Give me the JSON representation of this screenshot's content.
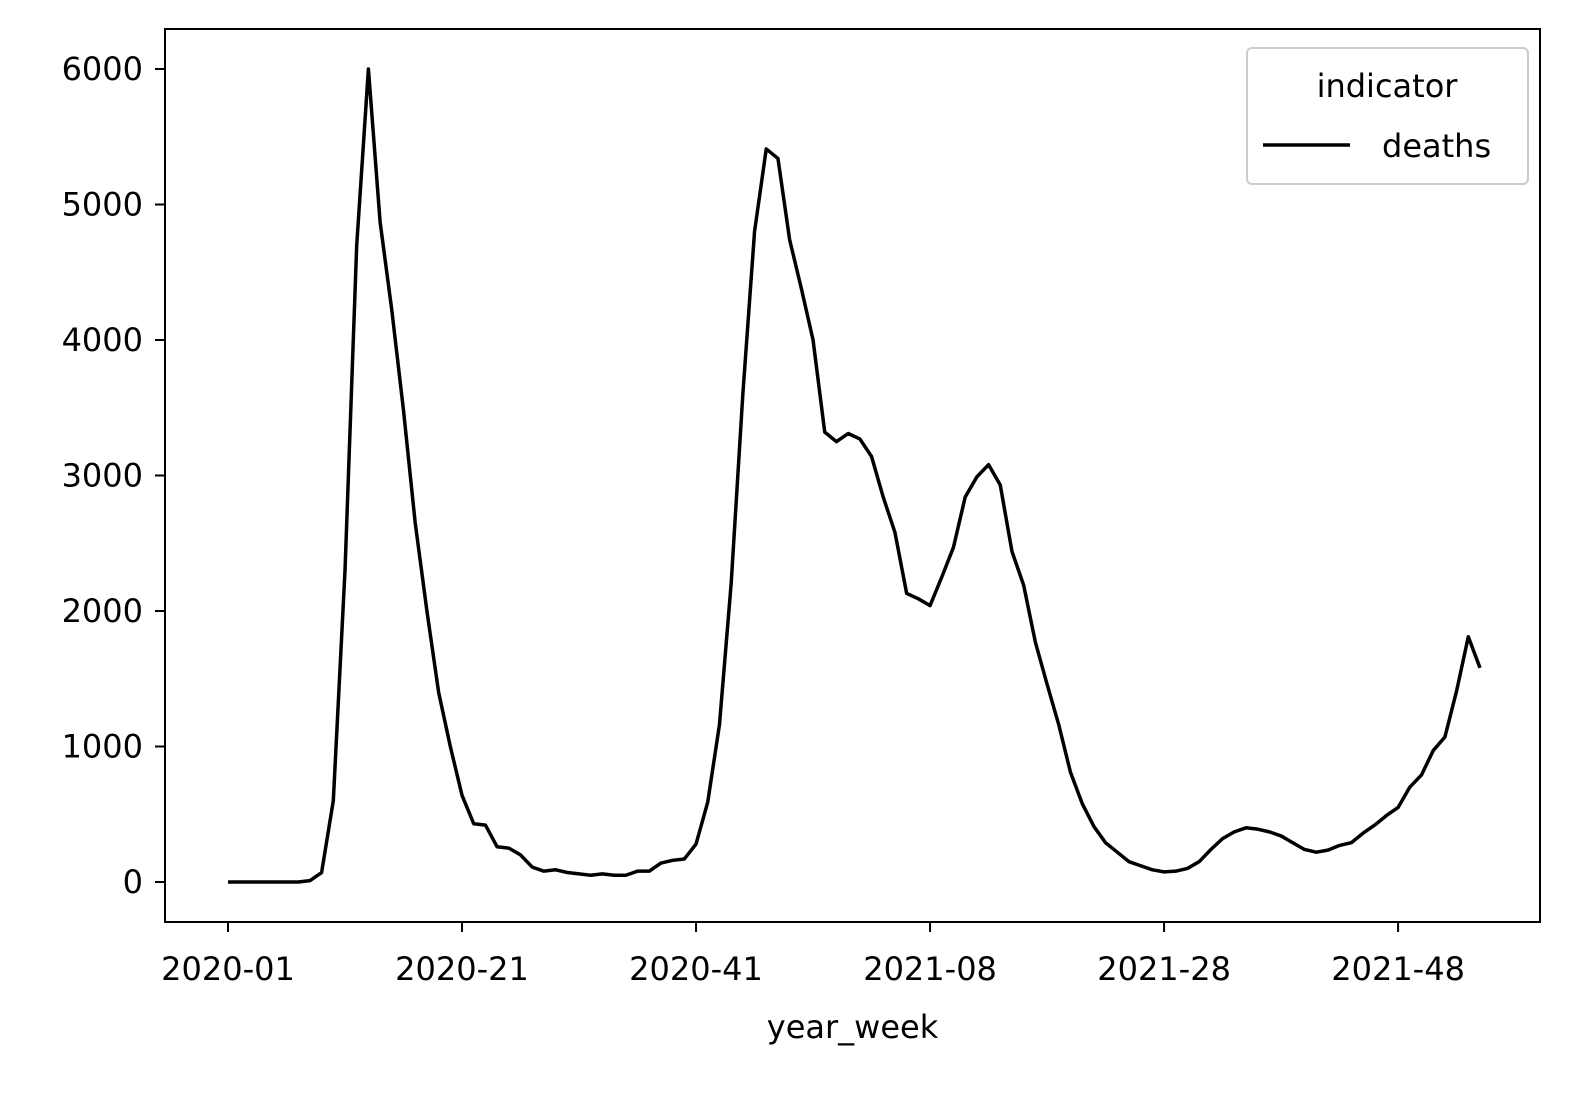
{
  "chart_data": {
    "type": "line",
    "title": "",
    "xlabel": "year_week",
    "ylabel": "",
    "x_ticks": [
      "2020-01",
      "2020-21",
      "2020-41",
      "2021-08",
      "2021-28",
      "2021-48"
    ],
    "y_ticks": [
      "0",
      "1000",
      "2000",
      "3000",
      "4000",
      "5000",
      "6000"
    ],
    "ylim": [
      -300,
      6280
    ],
    "grid": false,
    "legend": {
      "title": "indicator",
      "placement": "top-right"
    },
    "series": [
      {
        "name": "deaths",
        "color": "#000000",
        "x": [
          "2020-01",
          "2020-02",
          "2020-03",
          "2020-04",
          "2020-05",
          "2020-06",
          "2020-07",
          "2020-08",
          "2020-09",
          "2020-10",
          "2020-11",
          "2020-12",
          "2020-13",
          "2020-14",
          "2020-15",
          "2020-16",
          "2020-17",
          "2020-18",
          "2020-19",
          "2020-20",
          "2020-21",
          "2020-22",
          "2020-23",
          "2020-24",
          "2020-25",
          "2020-26",
          "2020-27",
          "2020-28",
          "2020-29",
          "2020-30",
          "2020-31",
          "2020-32",
          "2020-33",
          "2020-34",
          "2020-35",
          "2020-36",
          "2020-37",
          "2020-38",
          "2020-39",
          "2020-40",
          "2020-41",
          "2020-42",
          "2020-43",
          "2020-44",
          "2020-45",
          "2020-46",
          "2020-47",
          "2020-48",
          "2020-49",
          "2020-50",
          "2020-51",
          "2020-52",
          "2020-53",
          "2021-01",
          "2021-02",
          "2021-03",
          "2021-04",
          "2021-05",
          "2021-06",
          "2021-07",
          "2021-08",
          "2021-09",
          "2021-10",
          "2021-11",
          "2021-12",
          "2021-13",
          "2021-14",
          "2021-15",
          "2021-16",
          "2021-17",
          "2021-18",
          "2021-19",
          "2021-20",
          "2021-21",
          "2021-22",
          "2021-23",
          "2021-24",
          "2021-25",
          "2021-26",
          "2021-27",
          "2021-28",
          "2021-29",
          "2021-30",
          "2021-31",
          "2021-32",
          "2021-33",
          "2021-34",
          "2021-35",
          "2021-36",
          "2021-37",
          "2021-38",
          "2021-39",
          "2021-40",
          "2021-41",
          "2021-42",
          "2021-43",
          "2021-44",
          "2021-45",
          "2021-46",
          "2021-47",
          "2021-48",
          "2021-49",
          "2021-50",
          "2021-51",
          "2021-52",
          "2021-53",
          "2022-01",
          "2022-02"
        ],
        "y": [
          0,
          0,
          0,
          0,
          0,
          0,
          0,
          10,
          70,
          600,
          2300,
          4700,
          6000,
          4870,
          4220,
          3480,
          2650,
          2000,
          1400,
          1000,
          640,
          430,
          420,
          260,
          250,
          200,
          110,
          80,
          90,
          70,
          60,
          50,
          60,
          50,
          50,
          80,
          80,
          140,
          160,
          170,
          280,
          590,
          1160,
          2200,
          3600,
          4800,
          5410,
          5340,
          4740,
          4380,
          4000,
          3320,
          3250,
          3310,
          3270,
          3140,
          2840,
          2580,
          2130,
          2090,
          2040,
          2250,
          2470,
          2840,
          2990,
          3080,
          2930,
          2440,
          2190,
          1770,
          1460,
          1160,
          810,
          580,
          410,
          290,
          220,
          150,
          120,
          90,
          75,
          80,
          100,
          150,
          240,
          320,
          370,
          400,
          390,
          370,
          340,
          290,
          240,
          220,
          235,
          270,
          290,
          360,
          420,
          490,
          550,
          700,
          790,
          970,
          1070,
          1410,
          1810,
          1580
        ]
      }
    ]
  }
}
